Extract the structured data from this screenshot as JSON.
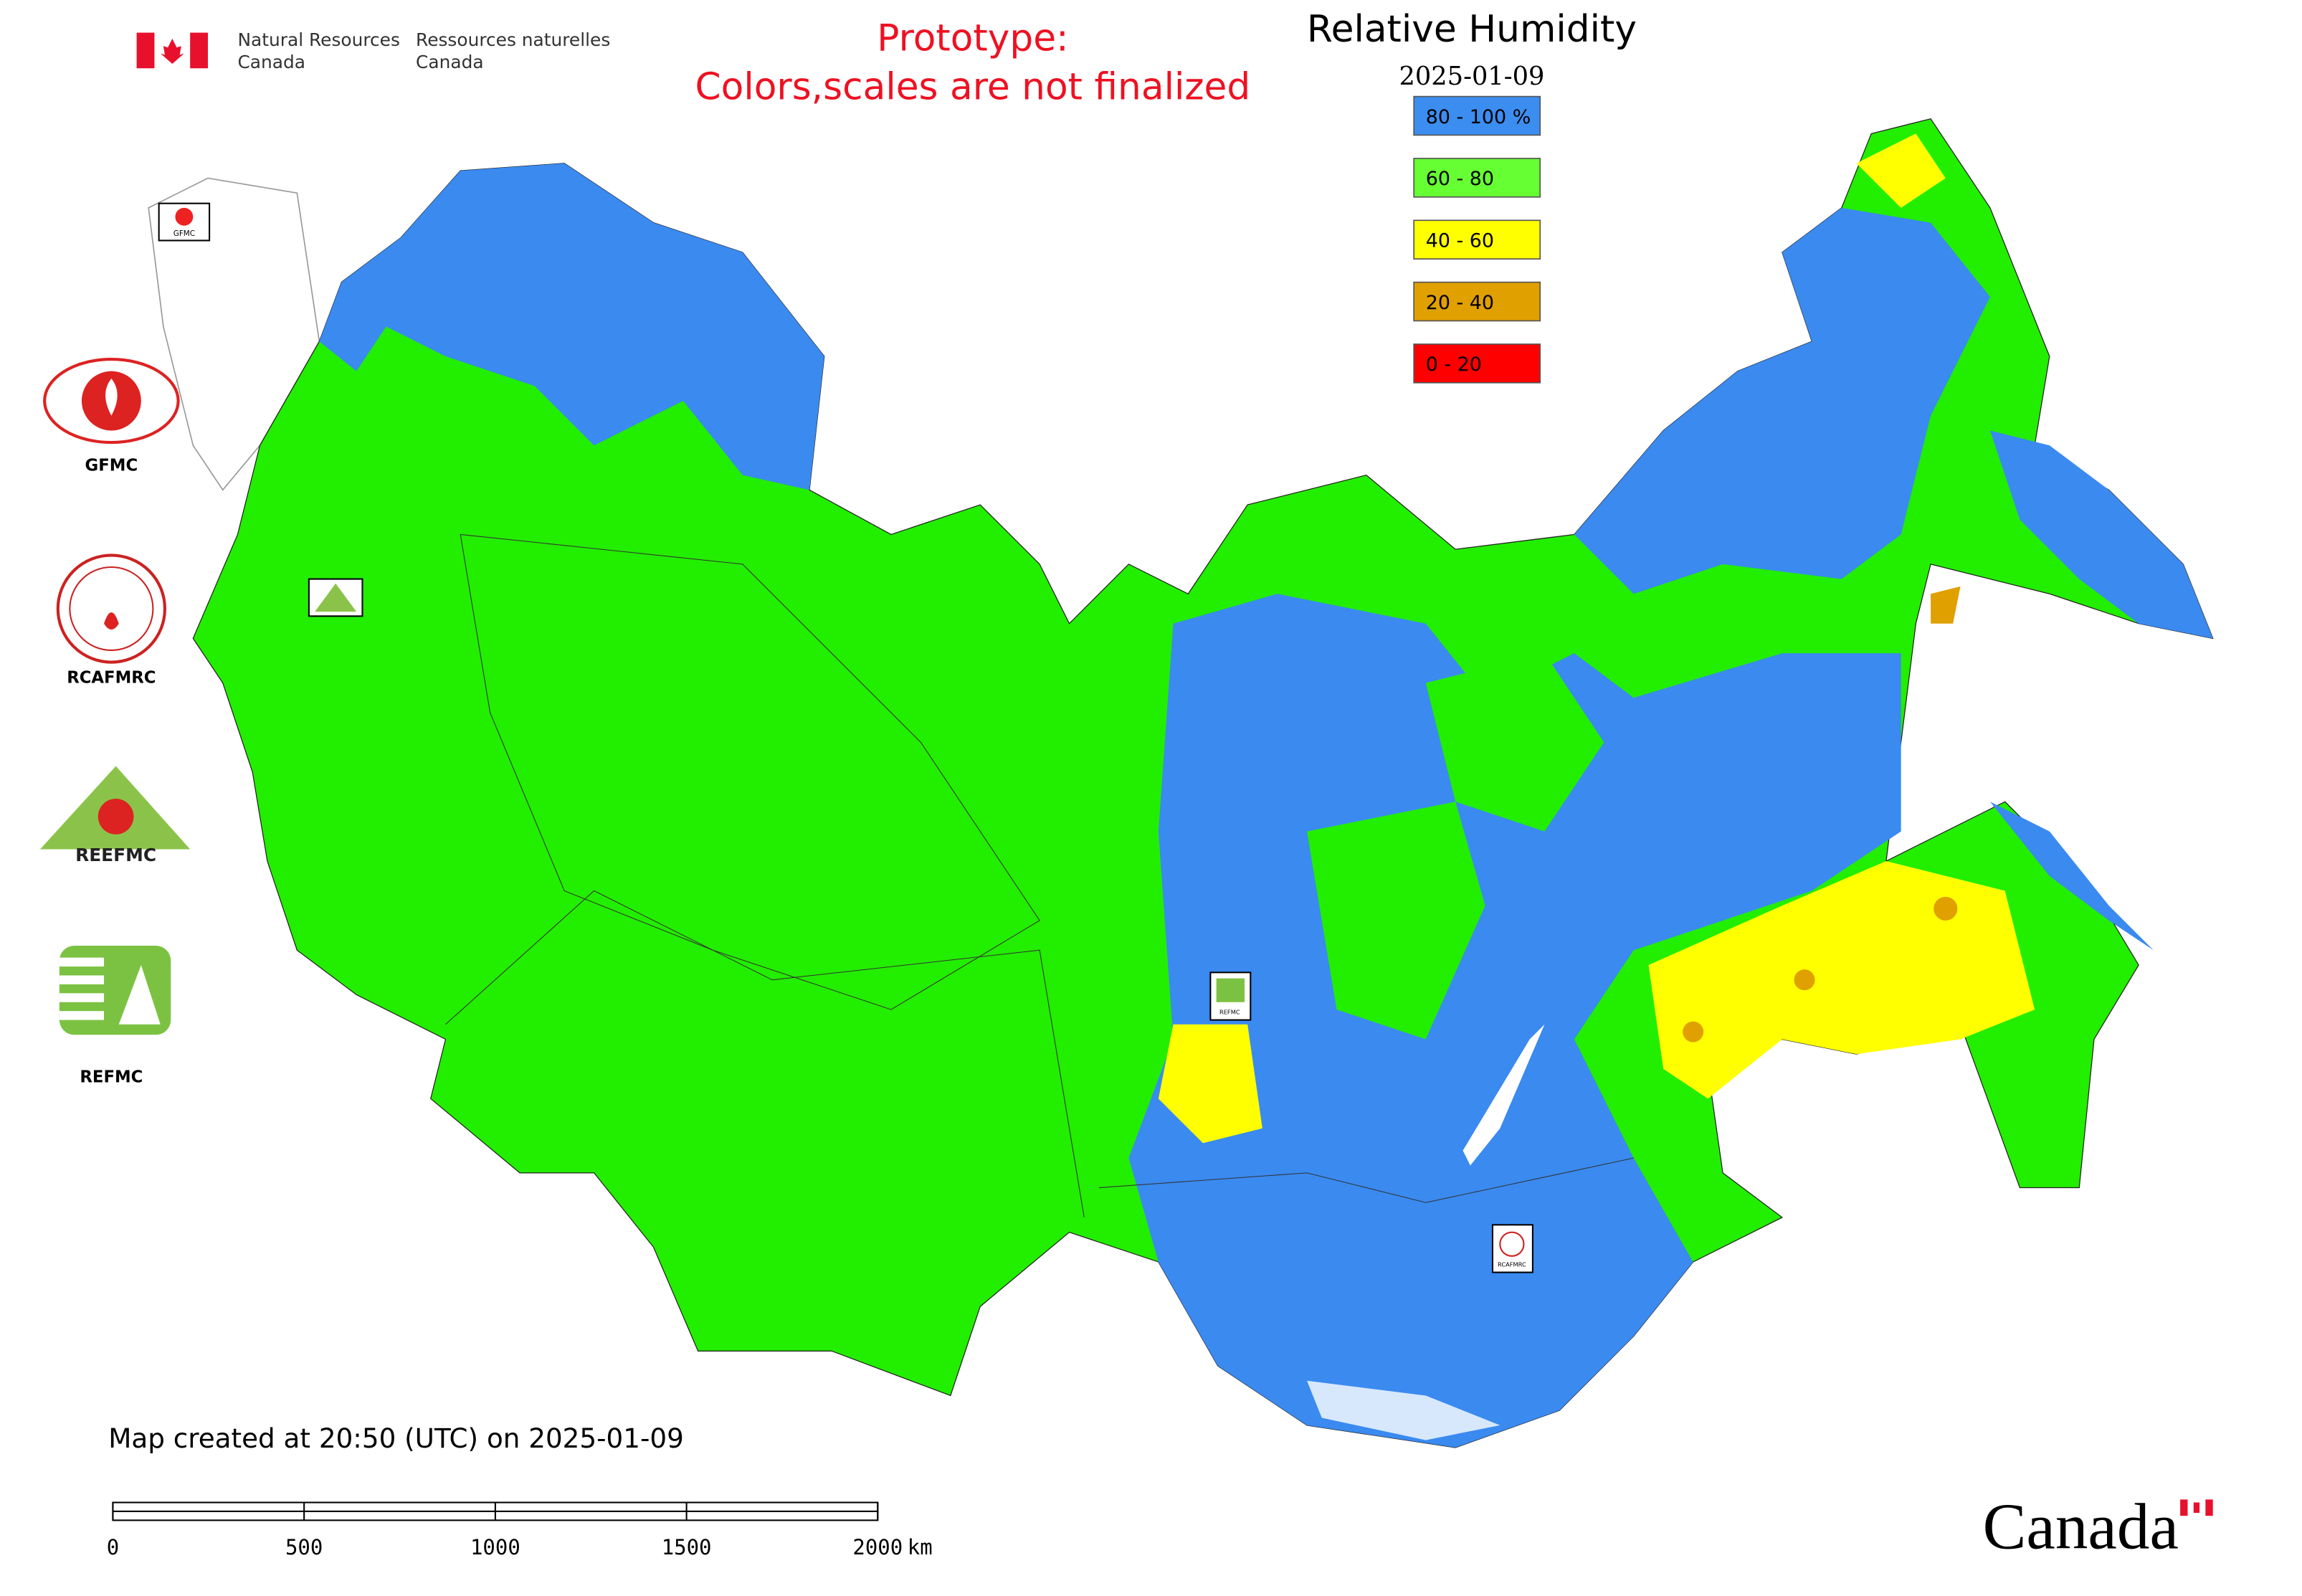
{
  "header": {
    "agency_en": [
      "Natural Resources",
      "Canada"
    ],
    "agency_fr": [
      "Ressources naturelles",
      "Canada"
    ],
    "notice": [
      "Prototype:",
      "Colors,scales are not finalized"
    ]
  },
  "map": {
    "title": "Relative Humidity",
    "date": "2025-01-09",
    "legend": [
      {
        "label": "80 - 100 %",
        "color": "#3c8df0"
      },
      {
        "label": "60 - 80",
        "color": "#66ff33"
      },
      {
        "label": "40 - 60",
        "color": "#ffff00"
      },
      {
        "label": "20 - 40",
        "color": "#e0a000"
      },
      {
        "label": "0 - 20",
        "color": "#ff0000"
      }
    ],
    "created": "Map created at 20:50 (UTC) on 2025-01-09"
  },
  "logos": {
    "labels": [
      "GFMC",
      "RCAFMRC",
      "REFMC"
    ],
    "reefmc_text": "REEFMC"
  },
  "scale_bar": {
    "ticks": [
      0,
      500,
      1000,
      1500,
      2000
    ],
    "unit": "km"
  },
  "footer": {
    "wordmark": "Canada"
  }
}
